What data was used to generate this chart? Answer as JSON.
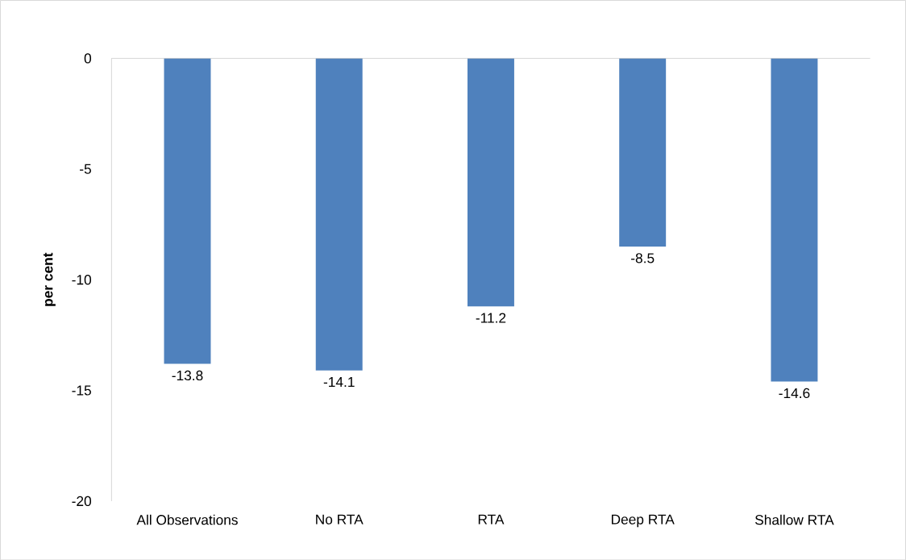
{
  "chart_data": {
    "type": "bar",
    "categories": [
      "All Observations",
      "No RTA",
      "RTA",
      "Deep RTA",
      "Shallow RTA"
    ],
    "values": [
      -13.8,
      -14.1,
      -11.2,
      -8.5,
      -14.6
    ],
    "color": "#4f81bd",
    "ylabel": "per cent",
    "ylim": [
      -20,
      0
    ],
    "yticks": [
      0,
      -5,
      -10,
      -15,
      -20
    ],
    "data_labels": true,
    "grid": false
  }
}
